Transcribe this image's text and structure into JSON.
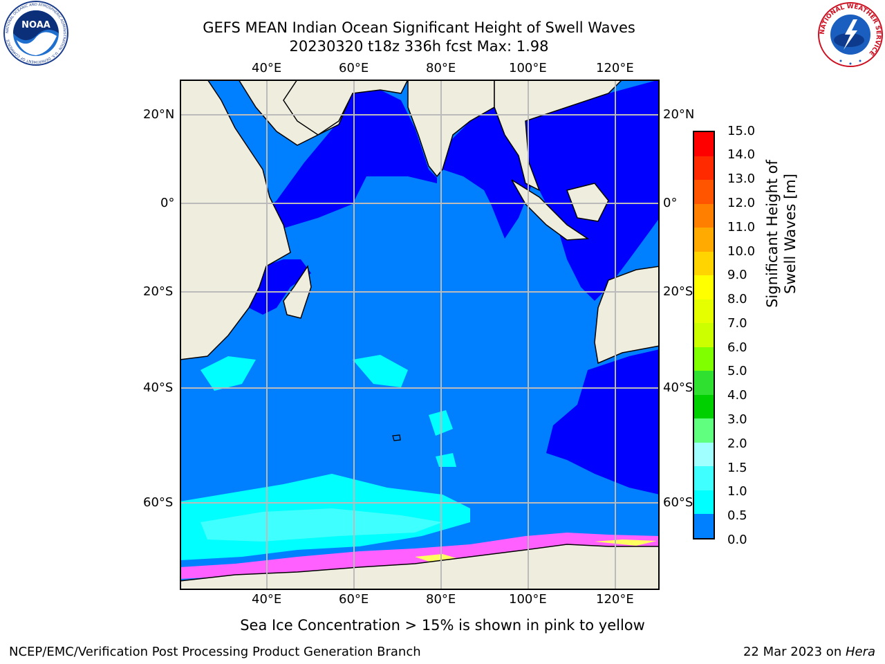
{
  "title": {
    "line1": "GEFS MEAN Indian Ocean Significant Height of Swell Waves",
    "line2": "20230320 t18z 336h fcst   Max: 1.98"
  },
  "map": {
    "lon_labels": [
      "40°E",
      "60°E",
      "80°E",
      "100°E",
      "120°E"
    ],
    "lat_labels": [
      "20°N",
      "0°",
      "20°S",
      "40°S",
      "60°S"
    ],
    "lon_range": [
      20,
      130
    ],
    "lat_range": [
      -73,
      29
    ],
    "gridlines": true,
    "colors": {
      "land": "#efedde",
      "ice_white": "#ffffff",
      "sea_0_05": "#0000ff",
      "sea_05_10": "#0080ff",
      "sea_10_15": "#00ffff",
      "sea_15_20": "#40ffff",
      "sea_20_30": "#a0ffff",
      "ice_pink": "#ff60ff",
      "ice_yellow": "#ffff60",
      "gridline": "#bbbbbb"
    }
  },
  "colorbar": {
    "title": "Significant Height of Swell Waves [m]",
    "ticks": [
      "15.0",
      "14.0",
      "13.0",
      "12.0",
      "11.0",
      "10.0",
      "9.0",
      "8.0",
      "7.0",
      "6.0",
      "5.0",
      "4.0",
      "3.0",
      "2.0",
      "1.5",
      "1.0",
      "0.5",
      "0.0"
    ],
    "colors_top_to_bottom": [
      "#ff0000",
      "#ff2a00",
      "#ff5500",
      "#ff8000",
      "#ffaa00",
      "#ffd400",
      "#ffff00",
      "#e6ff00",
      "#ccff00",
      "#80ff00",
      "#30e030",
      "#00d000",
      "#60ff80",
      "#a0ffff",
      "#40ffff",
      "#00ffff",
      "#0080ff",
      "#0000ff"
    ]
  },
  "ice_note": "Sea Ice Concentration > 15% is shown in pink to yellow",
  "footer": {
    "left": "NCEP/EMC/Verification Post Processing Product Generation Branch",
    "right_prefix": "22 Mar 2023 on ",
    "right_host": "Hera"
  },
  "logos": {
    "noaa_text": "NOAA",
    "noaa_ring": "NATIONAL OCEANIC AND ATMOSPHERIC ADMINISTRATION · U.S. DEPARTMENT OF COMMERCE",
    "nws_ring": "NATIONAL WEATHER SERVICE"
  }
}
